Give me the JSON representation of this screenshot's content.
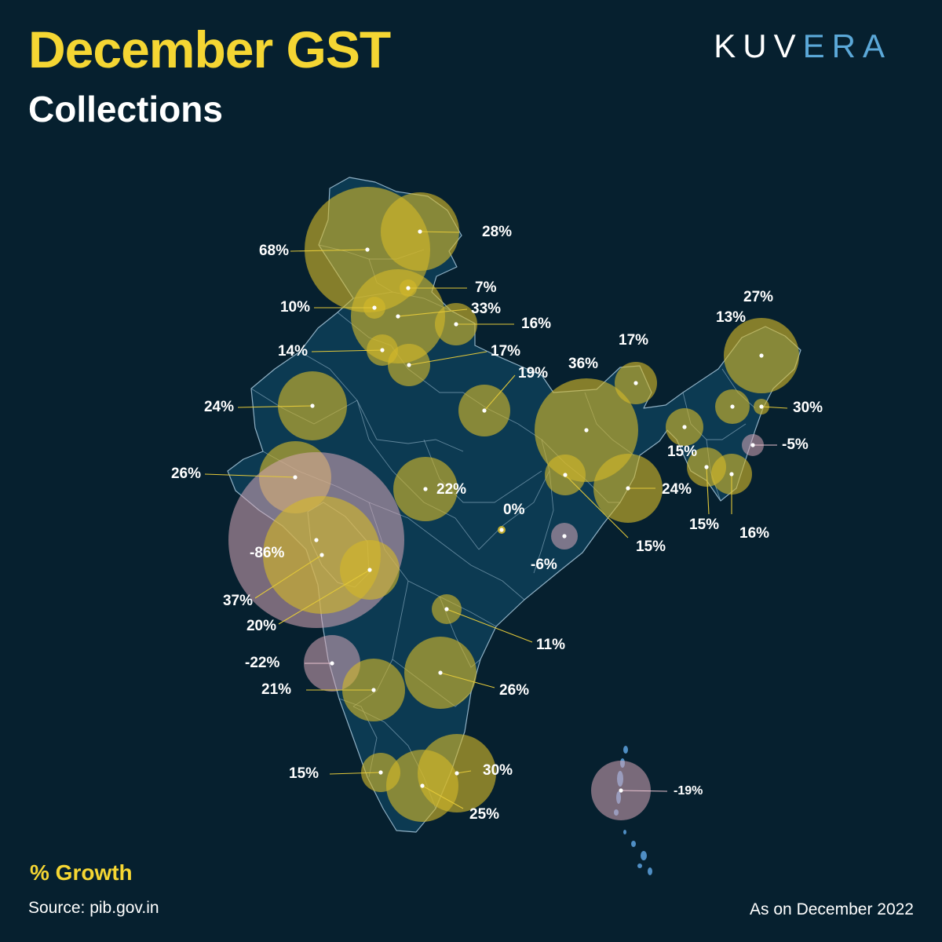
{
  "header": {
    "title": "December GST",
    "subtitle": "Collections",
    "logo_main": "KUV",
    "logo_accent": "ERA"
  },
  "footer": {
    "legend_title": "% Growth",
    "source": "Source: pib.gov.in",
    "as_of": "As on December 2022"
  },
  "colors": {
    "background": "#06202f",
    "map_fill": "#0c3a52",
    "map_border": "#8fb0c4",
    "positive_bubble": "#d4b82a",
    "negative_bubble": "#d8a8b8",
    "title": "#f5d633",
    "logo_accent": "#5ba8d8",
    "islands": "#4f8ec4"
  },
  "bubbles": [
    {
      "label": "68%",
      "value": 68
    },
    {
      "label": "28%",
      "value": 28
    },
    {
      "label": "7%",
      "value": 7
    },
    {
      "label": "10%",
      "value": 10
    },
    {
      "label": "33%",
      "value": 33
    },
    {
      "label": "16%",
      "value": 16
    },
    {
      "label": "14%",
      "value": 14
    },
    {
      "label": "17%",
      "value": 17
    },
    {
      "label": "19%",
      "value": 19
    },
    {
      "label": "24%",
      "value": 24
    },
    {
      "label": "36%",
      "value": 36
    },
    {
      "label": "17%",
      "value": 17
    },
    {
      "label": "27%",
      "value": 27
    },
    {
      "label": "13%",
      "value": 13
    },
    {
      "label": "30%",
      "value": 30
    },
    {
      "label": "-5%",
      "value": -5
    },
    {
      "label": "15%",
      "value": 15
    },
    {
      "label": "15%",
      "value": 15
    },
    {
      "label": "16%",
      "value": 16
    },
    {
      "label": "26%",
      "value": 26
    },
    {
      "label": "22%",
      "value": 22
    },
    {
      "label": "24%",
      "value": 24
    },
    {
      "label": "15%",
      "value": 15
    },
    {
      "label": "0%",
      "value": 0
    },
    {
      "label": "-6%",
      "value": -6
    },
    {
      "label": "-86%",
      "value": -86
    },
    {
      "label": "37%",
      "value": 37
    },
    {
      "label": "20%",
      "value": 20
    },
    {
      "label": "11%",
      "value": 11
    },
    {
      "label": "-22%",
      "value": -22
    },
    {
      "label": "21%",
      "value": 21
    },
    {
      "label": "26%",
      "value": 26
    },
    {
      "label": "15%",
      "value": 15
    },
    {
      "label": "30%",
      "value": 30
    },
    {
      "label": "25%",
      "value": 25
    },
    {
      "label": "-19%",
      "value": -19
    }
  ]
}
